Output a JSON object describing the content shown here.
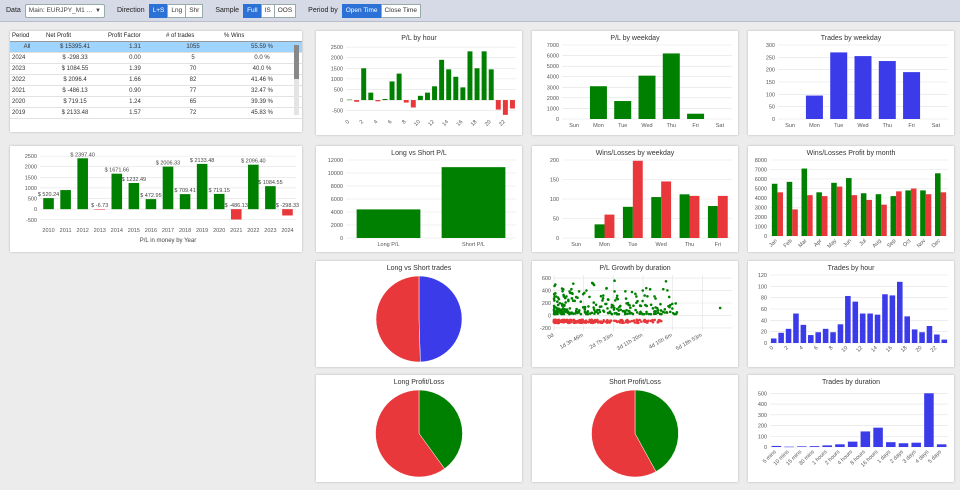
{
  "toolbar": {
    "data_label": "Data",
    "data_value": "Main: EURJPY_M1 ...",
    "direction_label": "Direction",
    "direction_options": [
      "L+S",
      "Lng",
      "Shr"
    ],
    "sample_label": "Sample",
    "sample_options": [
      "Full",
      "IS",
      "OOS"
    ],
    "period_label": "Period by",
    "period_options": [
      "Open Time",
      "Close Time"
    ]
  },
  "table": {
    "headers": [
      "Period",
      "Net Profit",
      "Profit Factor",
      "# of trades",
      "% Wins"
    ],
    "rows": [
      [
        "All",
        "$ 15395.41",
        "1.31",
        "1055",
        "55.59 %"
      ],
      [
        "2024",
        "$ -298.33",
        "0.00",
        "5",
        "0.0 %"
      ],
      [
        "2023",
        "$ 1084.55",
        "1.39",
        "70",
        "40.0 %"
      ],
      [
        "2022",
        "$ 2096.4",
        "1.66",
        "82",
        "41.46 %"
      ],
      [
        "2021",
        "$ -486.13",
        "0.90",
        "77",
        "32.47 %"
      ],
      [
        "2020",
        "$ 719.15",
        "1.24",
        "65",
        "39.39 %"
      ],
      [
        "2019",
        "$ 2133.48",
        "1.57",
        "72",
        "45.83 %"
      ]
    ]
  },
  "colors": {
    "green": "#008000",
    "red": "#e8383b",
    "blue": "#3b3bea",
    "grid": "#e2e2e2"
  },
  "chart_data": [
    {
      "id": "yearly",
      "type": "bar",
      "title": "",
      "xlabel": "P/L in money by Year",
      "categories": [
        "2010",
        "2011",
        "2012",
        "2013",
        "2014",
        "2015",
        "2016",
        "2017",
        "2018",
        "2019",
        "2020",
        "2021",
        "2022",
        "2023",
        "2024"
      ],
      "values": [
        520.24,
        900,
        2397.4,
        -6.73,
        1671.66,
        1232.49,
        472.95,
        2006.33,
        709.41,
        2133.48,
        719.15,
        -486.13,
        2096.4,
        1084.55,
        -298.33
      ],
      "labels": [
        "$ 520.24",
        "",
        "$ 2397.40",
        "$ -6.73",
        "$ 1671.66",
        "$ 1232.49",
        "$ 472.95",
        "$ 2006.33",
        "$ 709.41",
        "$ 2133.48",
        "$ 719.15",
        "$ -486.13",
        "$ 2096.40",
        "$ 1084.55",
        "$ -298.33"
      ],
      "yticks": [
        -500,
        0,
        500,
        1000,
        1500,
        2000,
        2500
      ],
      "ylim": [
        -700,
        2600
      ]
    },
    {
      "id": "plhour",
      "type": "bar",
      "title": "P/L by hour",
      "categories": [
        "0",
        "1",
        "2",
        "3",
        "4",
        "5",
        "6",
        "7",
        "8",
        "9",
        "10",
        "11",
        "12",
        "13",
        "14",
        "15",
        "16",
        "17",
        "18",
        "19",
        "20",
        "21",
        "22",
        "23"
      ],
      "xticks": [
        "0",
        "2",
        "4",
        "6",
        "8",
        "10",
        "12",
        "14",
        "16",
        "18",
        "20",
        "22"
      ],
      "values": [
        20,
        -80,
        1500,
        350,
        -60,
        50,
        880,
        1250,
        -120,
        -350,
        200,
        350,
        650,
        1900,
        1450,
        1100,
        600,
        2300,
        1500,
        2300,
        1450,
        -450,
        -700,
        -400
      ],
      "yticks": [
        -500,
        0,
        500,
        1000,
        1500,
        2000,
        2500
      ],
      "ylim": [
        -800,
        2600
      ]
    },
    {
      "id": "plweekday",
      "type": "bar",
      "title": "P/L by weekday",
      "categories": [
        "Sun",
        "Mon",
        "Tue",
        "Wed",
        "Thu",
        "Fri",
        "Sat"
      ],
      "values": [
        0,
        3100,
        1700,
        4100,
        6200,
        500,
        0
      ],
      "yticks": [
        0,
        1000,
        2000,
        3000,
        4000,
        5000,
        6000,
        7000
      ],
      "ylim": [
        0,
        7000
      ]
    },
    {
      "id": "tradesweekday",
      "type": "bar",
      "title": "Trades by weekday",
      "categories": [
        "Sun",
        "Mon",
        "Tue",
        "Wed",
        "Thu",
        "Fri",
        "Sat"
      ],
      "values": [
        0,
        95,
        270,
        255,
        235,
        190,
        0
      ],
      "yticks": [
        0,
        50,
        100,
        150,
        200,
        250,
        300
      ],
      "ylim": [
        0,
        300
      ]
    },
    {
      "id": "longshort",
      "type": "bar",
      "title": "Long vs Short P/L",
      "categories": [
        "Long P/L",
        "Short P/L"
      ],
      "values": [
        4400,
        10900
      ],
      "yticks": [
        0,
        2000,
        4000,
        6000,
        8000,
        10000,
        12000
      ],
      "ylim": [
        0,
        12000
      ]
    },
    {
      "id": "wlweekday",
      "type": "bar",
      "title": "Wins/Losses by weekday",
      "categories": [
        "Sun",
        "Mon",
        "Tue",
        "Wed",
        "Thu",
        "Fri"
      ],
      "series": [
        {
          "name": "Wins",
          "values": [
            0,
            35,
            80,
            105,
            112,
            82
          ]
        },
        {
          "name": "Losses",
          "values": [
            0,
            60,
            198,
            145,
            108,
            108
          ]
        }
      ],
      "yticks": [
        0,
        50,
        100,
        150,
        200
      ],
      "ylim": [
        0,
        200
      ]
    },
    {
      "id": "wlmonth",
      "type": "bar",
      "title": "Wins/Losses Profit by month",
      "categories": [
        "Jan",
        "Feb",
        "Mar",
        "Apr",
        "May",
        "Jun",
        "Jul",
        "Aug",
        "Sep",
        "Oct",
        "Nov",
        "Dec"
      ],
      "series": [
        {
          "name": "Wins",
          "values": [
            5500,
            5700,
            7100,
            4600,
            5600,
            6100,
            4500,
            4400,
            4200,
            4800,
            4800,
            6600
          ]
        },
        {
          "name": "Losses",
          "values": [
            4600,
            2800,
            4300,
            4200,
            5200,
            4300,
            3800,
            3300,
            4700,
            5000,
            4400,
            4600
          ]
        }
      ],
      "yticks": [
        0,
        1000,
        2000,
        3000,
        4000,
        5000,
        6000,
        7000,
        8000
      ],
      "ylim": [
        0,
        8000
      ]
    },
    {
      "id": "lstrades",
      "type": "pie",
      "title": "Long vs Short trades",
      "slices": [
        {
          "name": "Long",
          "value": 49.5,
          "color": "#3b3bea"
        },
        {
          "name": "Short",
          "value": 50.5,
          "color": "#e8383b"
        }
      ]
    },
    {
      "id": "growth",
      "type": "scatter",
      "title": "P/L Growth by duration",
      "xticks": [
        "0d",
        "1d 3h 46m",
        "2d 7h 33m",
        "3d 11h 20m",
        "4d 15h 6m",
        "5d 18h 53m"
      ],
      "yticks": [
        -200,
        0,
        200,
        400,
        600
      ],
      "ylim": [
        -250,
        650
      ],
      "xlim": [
        0,
        6
      ]
    },
    {
      "id": "tradeshour",
      "type": "bar",
      "title": "Trades by hour",
      "categories": [
        "0",
        "1",
        "2",
        "3",
        "4",
        "5",
        "6",
        "7",
        "8",
        "9",
        "10",
        "11",
        "12",
        "13",
        "14",
        "15",
        "16",
        "17",
        "18",
        "19",
        "20",
        "21",
        "22",
        "23"
      ],
      "xticks": [
        "0",
        "2",
        "4",
        "6",
        "8",
        "10",
        "12",
        "14",
        "16",
        "18",
        "20",
        "22"
      ],
      "values": [
        8,
        18,
        25,
        52,
        32,
        14,
        19,
        25,
        19,
        33,
        83,
        73,
        52,
        52,
        50,
        86,
        84,
        108,
        47,
        24,
        19,
        30,
        15,
        6
      ],
      "yticks": [
        0,
        20,
        40,
        60,
        80,
        100,
        120
      ],
      "ylim": [
        0,
        120
      ]
    },
    {
      "id": "longpl",
      "type": "pie",
      "title": "Long Profit/Loss",
      "slices": [
        {
          "name": "Profit",
          "value": 40,
          "color": "#008000"
        },
        {
          "name": "Loss",
          "value": 60,
          "color": "#e8383b"
        }
      ]
    },
    {
      "id": "shortpl",
      "type": "pie",
      "title": "Short Profit/Loss",
      "slices": [
        {
          "name": "Profit",
          "value": 42,
          "color": "#008000"
        },
        {
          "name": "Loss",
          "value": 58,
          "color": "#e8383b"
        }
      ]
    },
    {
      "id": "tradesdur",
      "type": "bar",
      "title": "Trades by duration",
      "categories": [
        "5 mins",
        "10 mins",
        "15 mins",
        "30 mins",
        "1 hours",
        "2 hours",
        "4 hours",
        "8 hours",
        "16 hours",
        "1 days",
        "2 days",
        "3 days",
        "4 days",
        "5 days"
      ],
      "values": [
        10,
        3,
        6,
        8,
        15,
        25,
        50,
        145,
        180,
        45,
        35,
        40,
        500,
        25
      ],
      "yticks": [
        0,
        100,
        200,
        300,
        400,
        500
      ],
      "ylim": [
        0,
        540
      ]
    }
  ]
}
